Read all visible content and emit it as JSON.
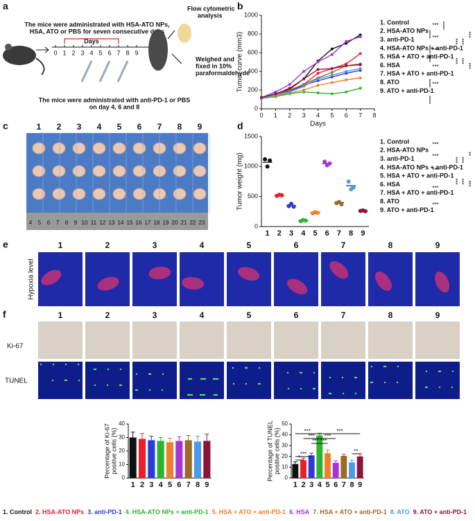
{
  "panel_labels": [
    "a",
    "b",
    "c",
    "d",
    "e",
    "f"
  ],
  "schematic": {
    "top_text": [
      "The mice were administrated with HSA-ATO NPs,",
      "HSA, ATO or PBS for seven consecutive days"
    ],
    "days_label": "Days",
    "day_numbers": [
      "0",
      "1",
      "2",
      "3",
      "4",
      "5",
      "6",
      "7",
      "8",
      "9"
    ],
    "flow_text": [
      "Flow cytometric",
      "analysis"
    ],
    "weigh_text": [
      "Weighed and",
      "fixed in 10%",
      "paraformaldehyde"
    ],
    "bottom_text": [
      "The mice were administrated with anti-PD-1 or PBS",
      "on day 4, 6 and 8"
    ]
  },
  "ruler": [
    "4",
    "5",
    "6",
    "7",
    "8",
    "9",
    "10",
    "11",
    "12",
    "13",
    "14",
    "15",
    "16",
    "17",
    "18",
    "19",
    "20",
    "21",
    "22",
    "23"
  ],
  "row_labels": {
    "hypoxia": "Hypoxia level",
    "ki67": "Ki-67",
    "tunel": "TUNEL"
  },
  "chart_data": [
    {
      "type": "line",
      "ylabel": "Tumor curve (mm3)",
      "xlabel": "Days",
      "x": [
        0,
        1,
        2,
        3,
        4,
        5,
        6,
        7
      ],
      "xlim": [
        0,
        8
      ],
      "xticks": [
        0,
        1,
        2,
        3,
        4,
        5,
        6,
        7,
        8
      ],
      "ylim": [
        0,
        1000
      ],
      "yticks": [
        0,
        200,
        400,
        600,
        800,
        1000
      ],
      "legend": "right",
      "significance": [
        "***",
        "***",
        "***",
        "***",
        "***",
        "***",
        "***",
        "***",
        "***",
        "***",
        "***"
      ],
      "series": [
        {
          "name": "1. Control",
          "color": "#111111",
          "values": [
            120,
            150,
            210,
            320,
            510,
            640,
            700,
            790
          ]
        },
        {
          "name": "2. HSA-ATO NPs",
          "color": "#e8202a",
          "values": [
            110,
            150,
            200,
            260,
            380,
            430,
            480,
            590
          ]
        },
        {
          "name": "3. anti-PD-1",
          "color": "#2b3bd6",
          "values": [
            120,
            160,
            190,
            250,
            300,
            340,
            380,
            410
          ]
        },
        {
          "name": "4. HSA-ATO NPs + anti-PD-1",
          "color": "#2cb52c",
          "values": [
            110,
            130,
            160,
            180,
            170,
            160,
            180,
            220
          ]
        },
        {
          "name": "5. HSA + ATO + anti-PD-1",
          "color": "#f07f2a",
          "values": [
            110,
            140,
            170,
            200,
            250,
            280,
            310,
            330
          ]
        },
        {
          "name": "6. HSA",
          "color": "#a733d8",
          "values": [
            120,
            180,
            260,
            400,
            500,
            580,
            720,
            770
          ]
        },
        {
          "name": "7. HSA + ATO + anti-PD-1",
          "color": "#9c6a28",
          "values": [
            120,
            160,
            200,
            260,
            330,
            390,
            460,
            480
          ]
        },
        {
          "name": "8. ATO",
          "color": "#4b9be8",
          "values": [
            110,
            150,
            180,
            240,
            320,
            360,
            400,
            430
          ]
        },
        {
          "name": "9. ATO + anti-PD-1",
          "color": "#8b1538",
          "values": [
            120,
            160,
            220,
            320,
            420,
            430,
            460,
            470
          ]
        }
      ]
    },
    {
      "type": "dot",
      "ylabel": "Tumor weight (mg)",
      "categories": [
        "1",
        "2",
        "3",
        "4",
        "5",
        "6",
        "7",
        "8",
        "9"
      ],
      "ylim": [
        0,
        1500
      ],
      "yticks": [
        0,
        500,
        1000,
        1500
      ],
      "significance": [
        "***",
        "***",
        "***",
        "***",
        "***",
        "***",
        "***",
        "**",
        "***",
        "***",
        "***"
      ],
      "values": [
        1070,
        520,
        350,
        100,
        230,
        1050,
        400,
        680,
        260
      ],
      "points": [
        [
          1120,
          1000,
          1100
        ],
        [
          510,
          530,
          520
        ],
        [
          340,
          380,
          330
        ],
        [
          90,
          110,
          100
        ],
        [
          220,
          240,
          230
        ],
        [
          1080,
          1020,
          1050
        ],
        [
          390,
          410,
          370
        ],
        [
          750,
          620,
          650
        ],
        [
          260,
          270,
          255
        ]
      ]
    },
    {
      "type": "bar",
      "ylabel": [
        "Percentage of Ki-67",
        "positive cells (%)"
      ],
      "categories": [
        "1",
        "2",
        "3",
        "4",
        "5",
        "6",
        "7",
        "8",
        "9"
      ],
      "ylim": [
        0,
        40
      ],
      "yticks": [
        0,
        10,
        20,
        30,
        40
      ],
      "values": [
        30,
        29,
        28,
        27.5,
        26.5,
        27.5,
        28,
        27,
        27.5
      ],
      "errors": [
        4,
        4,
        3,
        2.5,
        3,
        3,
        3.5,
        4,
        5
      ]
    },
    {
      "type": "bar",
      "ylabel": [
        "Percentage of TUNEL",
        "positive cells (%)"
      ],
      "categories": [
        "1",
        "2",
        "3",
        "4",
        "5",
        "6",
        "7",
        "8",
        "9"
      ],
      "ylim": [
        0,
        50
      ],
      "yticks": [
        0,
        10,
        20,
        30,
        40,
        50
      ],
      "values": [
        13,
        16.5,
        21,
        39.5,
        23,
        14,
        20.5,
        14.5,
        20
      ],
      "errors": [
        2,
        2,
        2,
        2,
        3,
        2,
        1.5,
        2,
        2.5
      ],
      "significance": [
        "*",
        "***",
        "***",
        "***",
        "***",
        "***",
        "***",
        "***",
        "**"
      ]
    }
  ]
}
